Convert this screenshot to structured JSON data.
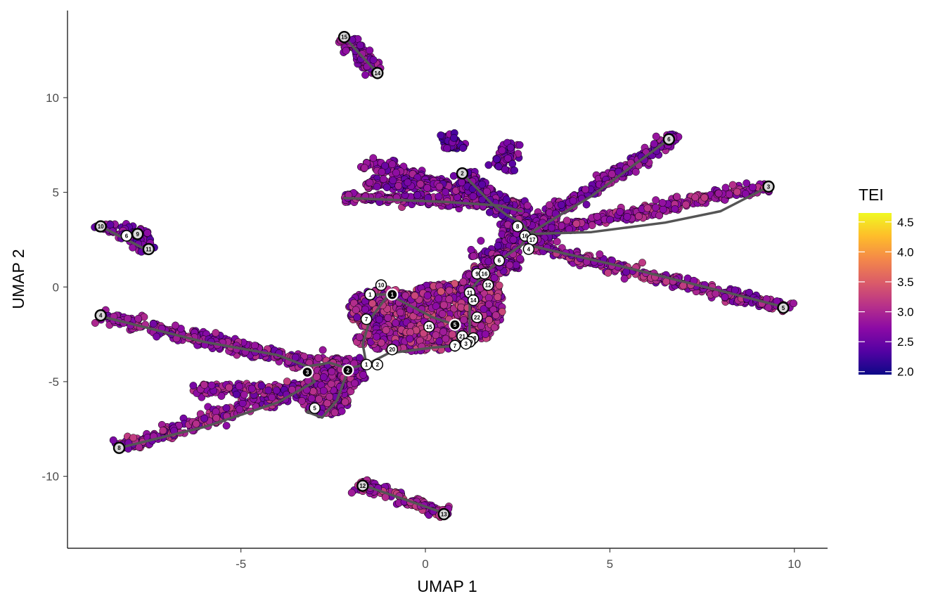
{
  "chart_data": {
    "type": "scatter",
    "title": "",
    "xlabel": "UMAP 1",
    "ylabel": "UMAP 2",
    "xlim": [
      -9.7,
      10.9
    ],
    "ylim": [
      -13.8,
      14.6
    ],
    "xticks": [
      -5,
      0,
      5,
      10
    ],
    "yticks": [
      -10,
      -5,
      0,
      5,
      10
    ],
    "xtick_labels": [
      "-5",
      "0",
      "5",
      "10"
    ],
    "ytick_labels": [
      "-10",
      "-5",
      "0",
      "5",
      "10"
    ],
    "grid": false,
    "legend": {
      "title": "TEI",
      "placement": "right",
      "range": [
        1.95,
        4.65
      ],
      "ticks": [
        2.0,
        2.5,
        3.0,
        3.5,
        4.0,
        4.5
      ],
      "tick_labels": [
        "2.0",
        "2.5",
        "3.0",
        "3.5",
        "4.0",
        "4.5"
      ],
      "colormap": [
        "#0d0887",
        "#5302a3",
        "#8b0aa5",
        "#b83289",
        "#db5c68",
        "#f48849",
        "#febd2a",
        "#f0f921"
      ]
    },
    "trajectory_color": "#555555",
    "point_outline": "#000000",
    "cell_branches": [
      {
        "from": [
          -2.2,
          13.2
        ],
        "to": [
          -1.3,
          11.3
        ],
        "width": 0.15,
        "tei": [
          2.5,
          3.0
        ]
      },
      {
        "from": [
          -8.9,
          3.3
        ],
        "to": [
          -7.5,
          2.6
        ],
        "width": 0.15,
        "tei": [
          2.4,
          3.0
        ]
      },
      {
        "from": [
          -8.0,
          2.9
        ],
        "to": [
          -7.5,
          1.9
        ],
        "width": 0.15,
        "tei": [
          2.3,
          2.9
        ]
      },
      {
        "from": [
          -8.9,
          -1.5
        ],
        "to": [
          -3.0,
          -4.1
        ],
        "width": 0.18,
        "tei": [
          2.5,
          3.1
        ]
      },
      {
        "from": [
          -8.3,
          -8.5
        ],
        "to": [
          -3.2,
          -5.3
        ],
        "width": 0.2,
        "tei": [
          2.5,
          3.2
        ]
      },
      {
        "from": [
          -6.3,
          -5.4
        ],
        "to": [
          -2.2,
          -5.4
        ],
        "width": 0.18,
        "tei": [
          2.4,
          3.2
        ]
      },
      {
        "from": [
          -1.8,
          -10.4
        ],
        "to": [
          0.6,
          -12.0
        ],
        "width": 0.15,
        "tei": [
          2.6,
          3.3
        ]
      },
      {
        "from": [
          -3.0,
          -4.0
        ],
        "to": [
          -1.7,
          -4.2
        ],
        "width": 0.3,
        "tei": [
          2.5,
          3.2
        ]
      },
      {
        "from": [
          2.8,
          2.2
        ],
        "to": [
          9.9,
          -1.2
        ],
        "width": 0.15,
        "tei": [
          2.5,
          3.2
        ]
      },
      {
        "from": [
          3.2,
          3.0
        ],
        "to": [
          9.3,
          5.3
        ],
        "width": 0.15,
        "tei": [
          2.6,
          3.2
        ]
      },
      {
        "from": [
          3.0,
          3.3
        ],
        "to": [
          6.8,
          8.0
        ],
        "width": 0.15,
        "tei": [
          2.4,
          3.0
        ]
      },
      {
        "from": [
          -1.6,
          6.6
        ],
        "to": [
          2.8,
          4.0
        ],
        "width": 0.15,
        "tei": [
          2.4,
          3.0
        ]
      },
      {
        "from": [
          -2.2,
          4.7
        ],
        "to": [
          2.8,
          4.4
        ],
        "width": 0.15,
        "tei": [
          2.5,
          3.1
        ]
      },
      {
        "from": [
          -1.6,
          5.5
        ],
        "to": [
          1.6,
          5.2
        ],
        "width": 0.12,
        "tei": [
          2.4,
          3.0
        ]
      },
      {
        "from": [
          1.0,
          6.0
        ],
        "to": [
          2.6,
          3.0
        ],
        "width": 0.2,
        "tei": [
          2.3,
          2.9
        ]
      },
      {
        "from": [
          2.5,
          2.5
        ],
        "to": [
          1.5,
          1.4
        ],
        "width": 0.25,
        "tei": [
          2.4,
          3.0
        ]
      },
      {
        "from": [
          0.6,
          8.1
        ],
        "to": [
          0.9,
          7.2
        ],
        "width": 0.15,
        "tei": [
          2.2,
          2.8
        ]
      },
      {
        "from": [
          2.4,
          7.6
        ],
        "to": [
          2.0,
          6.2
        ],
        "width": 0.15,
        "tei": [
          2.3,
          2.9
        ]
      }
    ],
    "cell_blobs": [
      {
        "center": [
          -1.1,
          -1.2
        ],
        "rx": 1.0,
        "ry": 1.1,
        "tei": [
          2.5,
          3.3
        ]
      },
      {
        "center": [
          0.6,
          -1.2
        ],
        "rx": 1.4,
        "ry": 1.4,
        "tei": [
          2.6,
          3.4
        ]
      },
      {
        "center": [
          1.5,
          -0.8
        ],
        "rx": 0.6,
        "ry": 2.0,
        "tei": [
          2.6,
          3.3
        ]
      },
      {
        "center": [
          -0.3,
          -2.8
        ],
        "rx": 1.6,
        "ry": 0.6,
        "tei": [
          2.6,
          3.3
        ]
      },
      {
        "center": [
          -2.7,
          -5.7
        ],
        "rx": 0.7,
        "ry": 1.1,
        "tei": [
          2.5,
          3.1
        ]
      },
      {
        "center": [
          -2.2,
          -4.6
        ],
        "rx": 0.6,
        "ry": 0.7,
        "tei": [
          2.5,
          3.1
        ]
      },
      {
        "center": [
          2.8,
          3.0
        ],
        "rx": 0.8,
        "ry": 0.7,
        "tei": [
          2.4,
          3.0
        ]
      },
      {
        "center": [
          2.1,
          1.3
        ],
        "rx": 0.5,
        "ry": 0.6,
        "tei": [
          2.5,
          3.1
        ]
      }
    ],
    "trajectories": [
      [
        [
          -2.2,
          13.2
        ],
        [
          -1.3,
          11.3
        ]
      ],
      [
        [
          -8.9,
          3.3
        ],
        [
          -7.5,
          1.9
        ]
      ],
      [
        [
          -8.9,
          -1.5
        ],
        [
          -6.0,
          -2.9
        ],
        [
          -4.0,
          -3.6
        ],
        [
          -3.2,
          -4.2
        ],
        [
          -2.6,
          -4.0
        ],
        [
          -2.1,
          -4.3
        ],
        [
          -1.6,
          -4.1
        ],
        [
          -1.0,
          -3.5
        ],
        [
          0.2,
          -3.2
        ],
        [
          0.9,
          -3.1
        ],
        [
          1.2,
          -2.7
        ],
        [
          1.2,
          -1.6
        ],
        [
          1.2,
          -0.2
        ],
        [
          1.6,
          0.7
        ],
        [
          2.0,
          1.4
        ],
        [
          2.6,
          2.2
        ],
        [
          2.8,
          2.8
        ]
      ],
      [
        [
          -8.3,
          -8.5
        ],
        [
          -6.0,
          -7.4
        ],
        [
          -4.0,
          -6.1
        ],
        [
          -3.0,
          -5.0
        ],
        [
          -3.2,
          -4.5
        ]
      ],
      [
        [
          -2.1,
          -4.4
        ],
        [
          -2.4,
          -6.0
        ],
        [
          -2.8,
          -6.9
        ],
        [
          -3.2,
          -6.6
        ],
        [
          -3.0,
          -6.3
        ]
      ],
      [
        [
          -1.6,
          -0.4
        ],
        [
          -1.0,
          -0.4
        ],
        [
          -0.5,
          -0.9
        ],
        [
          0.2,
          -1.6
        ],
        [
          0.8,
          -2.0
        ],
        [
          0.9,
          -2.6
        ],
        [
          0.8,
          -3.1
        ]
      ],
      [
        [
          -1.0,
          -0.4
        ],
        [
          -1.5,
          -1.7
        ],
        [
          -1.7,
          -3.0
        ],
        [
          -1.6,
          -4.1
        ]
      ],
      [
        [
          -1.8,
          -10.4
        ],
        [
          0.6,
          -12.0
        ]
      ],
      [
        [
          1.0,
          6.0
        ],
        [
          1.8,
          4.4
        ],
        [
          2.2,
          3.8
        ],
        [
          2.6,
          3.4
        ],
        [
          2.8,
          2.9
        ]
      ],
      [
        [
          -2.2,
          4.7
        ],
        [
          0.5,
          4.5
        ],
        [
          2.0,
          4.3
        ],
        [
          2.6,
          4.0
        ]
      ],
      [
        [
          2.8,
          2.8
        ],
        [
          4.5,
          2.9
        ],
        [
          6.5,
          3.4
        ],
        [
          8.0,
          4.0
        ],
        [
          9.3,
          5.3
        ]
      ],
      [
        [
          2.8,
          2.8
        ],
        [
          4.5,
          4.8
        ],
        [
          6.6,
          7.8
        ]
      ],
      [
        [
          2.8,
          2.2
        ],
        [
          5.5,
          1.0
        ],
        [
          8.0,
          -0.2
        ],
        [
          9.8,
          -1.1
        ]
      ]
    ],
    "nodes": [
      {
        "x": -2.2,
        "y": 13.2,
        "label": "15",
        "style": "leaf"
      },
      {
        "x": -1.3,
        "y": 11.3,
        "label": "14",
        "style": "leaf"
      },
      {
        "x": 6.6,
        "y": 7.8,
        "label": "6",
        "style": "leaf"
      },
      {
        "x": 1.0,
        "y": 6.0,
        "label": "2",
        "style": "leaf"
      },
      {
        "x": 9.3,
        "y": 5.3,
        "label": "3",
        "style": "leaf"
      },
      {
        "x": -8.8,
        "y": 3.2,
        "label": "10",
        "style": "leaf"
      },
      {
        "x": -8.1,
        "y": 2.7,
        "label": "6",
        "style": "branch"
      },
      {
        "x": -7.8,
        "y": 2.8,
        "label": "9",
        "style": "leaf"
      },
      {
        "x": -7.5,
        "y": 2.0,
        "label": "11",
        "style": "leaf"
      },
      {
        "x": 2.5,
        "y": 3.2,
        "label": "8",
        "style": "branch"
      },
      {
        "x": 2.7,
        "y": 2.7,
        "label": "16",
        "style": "branch"
      },
      {
        "x": 2.9,
        "y": 2.5,
        "label": "17",
        "style": "branch"
      },
      {
        "x": 2.8,
        "y": 2.0,
        "label": "4",
        "style": "branch"
      },
      {
        "x": 2.0,
        "y": 1.4,
        "label": "6",
        "style": "branch"
      },
      {
        "x": 1.4,
        "y": 0.7,
        "label": "9",
        "style": "branch"
      },
      {
        "x": 1.6,
        "y": 0.7,
        "label": "16",
        "style": "branch"
      },
      {
        "x": 1.7,
        "y": 0.1,
        "label": "12",
        "style": "branch"
      },
      {
        "x": 1.2,
        "y": -0.3,
        "label": "11",
        "style": "branch"
      },
      {
        "x": 1.3,
        "y": -0.7,
        "label": "14",
        "style": "branch"
      },
      {
        "x": 1.4,
        "y": -1.6,
        "label": "22",
        "style": "branch"
      },
      {
        "x": -1.2,
        "y": 0.1,
        "label": "10",
        "style": "branch"
      },
      {
        "x": -1.5,
        "y": -0.4,
        "label": "1",
        "style": "branch"
      },
      {
        "x": -0.9,
        "y": -0.4,
        "label": "1",
        "style": "root"
      },
      {
        "x": -1.6,
        "y": -1.7,
        "label": "7",
        "style": "branch"
      },
      {
        "x": 0.1,
        "y": -2.1,
        "label": "15",
        "style": "branch"
      },
      {
        "x": 0.8,
        "y": -2.0,
        "label": "5",
        "style": "root"
      },
      {
        "x": 1.0,
        "y": -2.6,
        "label": "21",
        "style": "branch"
      },
      {
        "x": 1.3,
        "y": -2.7,
        "label": "18",
        "style": "branch"
      },
      {
        "x": 1.2,
        "y": -2.9,
        "label": "19",
        "style": "branch"
      },
      {
        "x": 1.1,
        "y": -3.0,
        "label": "3",
        "style": "branch"
      },
      {
        "x": 0.8,
        "y": -3.1,
        "label": "7",
        "style": "branch"
      },
      {
        "x": -0.9,
        "y": -3.3,
        "label": "20",
        "style": "branch"
      },
      {
        "x": -1.6,
        "y": -4.1,
        "label": "1",
        "style": "branch"
      },
      {
        "x": -1.3,
        "y": -4.1,
        "label": "2",
        "style": "branch"
      },
      {
        "x": -2.1,
        "y": -4.4,
        "label": "2",
        "style": "root"
      },
      {
        "x": -3.2,
        "y": -4.5,
        "label": "3",
        "style": "root"
      },
      {
        "x": -3.0,
        "y": -6.4,
        "label": "5",
        "style": "branch"
      },
      {
        "x": -8.8,
        "y": -1.5,
        "label": "4",
        "style": "leaf"
      },
      {
        "x": -8.3,
        "y": -8.5,
        "label": "8",
        "style": "leaf"
      },
      {
        "x": 9.7,
        "y": -1.1,
        "label": "5",
        "style": "leaf"
      },
      {
        "x": -1.7,
        "y": -10.5,
        "label": "12",
        "style": "leaf"
      },
      {
        "x": 0.5,
        "y": -12.0,
        "label": "13",
        "style": "leaf"
      }
    ]
  }
}
